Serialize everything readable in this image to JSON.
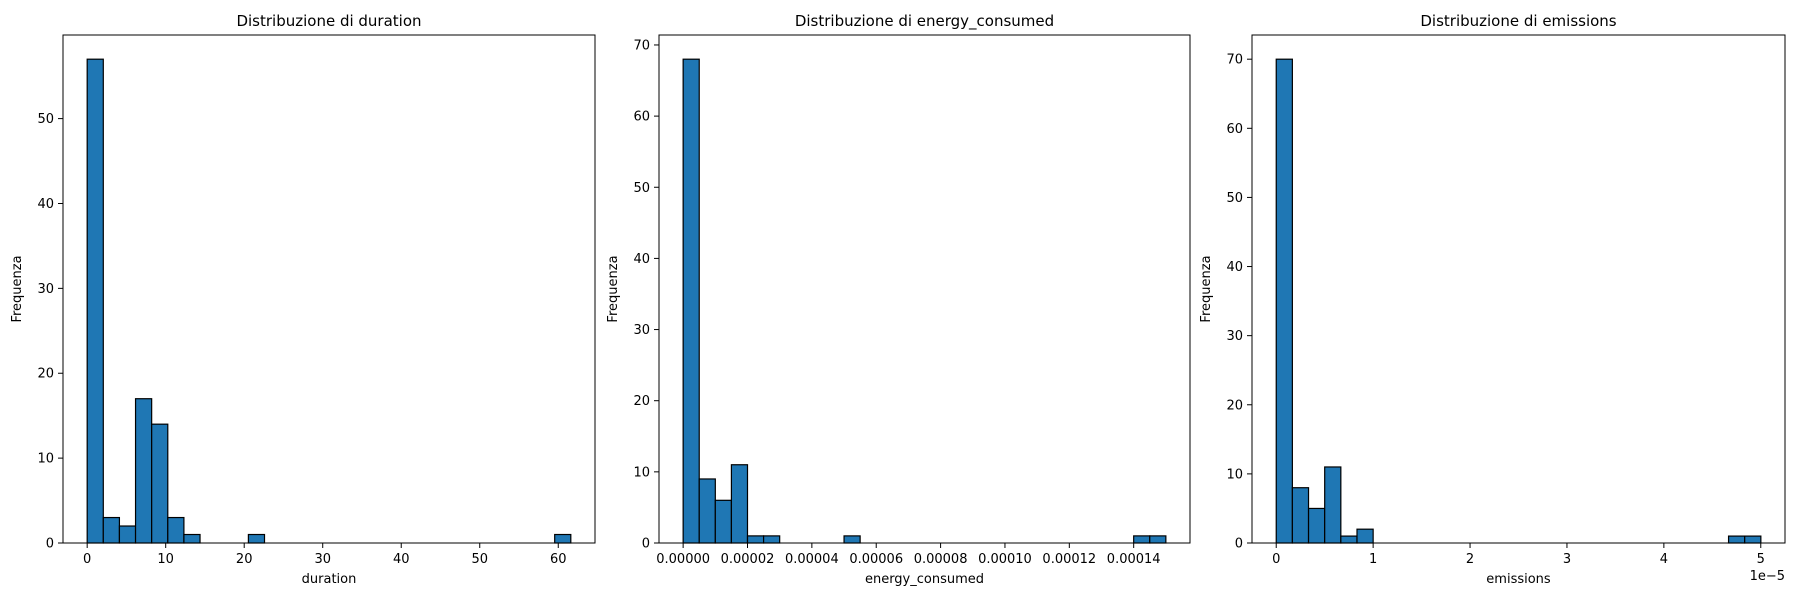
{
  "chart_data": [
    {
      "type": "bar",
      "title": "Distribuzione di duration",
      "xlabel": "duration",
      "ylabel": "Frequenza",
      "xlim": [
        -3.08,
        64.68
      ],
      "ylim": [
        0,
        59.85
      ],
      "xticks": [
        0,
        10,
        20,
        30,
        40,
        50,
        60
      ],
      "xtick_labels": [
        "0",
        "10",
        "20",
        "30",
        "40",
        "50",
        "60"
      ],
      "yticks": [
        0,
        10,
        20,
        30,
        40,
        50
      ],
      "ytick_labels": [
        "0",
        "10",
        "20",
        "30",
        "40",
        "50"
      ],
      "offset_label": "",
      "bin_start": 0.0,
      "bin_width": 2.0533,
      "values": [
        57,
        3,
        2,
        17,
        14,
        3,
        1,
        0,
        0,
        0,
        1,
        0,
        0,
        0,
        0,
        0,
        0,
        0,
        0,
        0,
        0,
        0,
        0,
        0,
        0,
        0,
        0,
        0,
        0,
        1
      ],
      "grid": false
    },
    {
      "type": "bar",
      "title": "Distribuzione di energy_consumed",
      "xlabel": "energy_consumed",
      "ylabel": "Frequenza",
      "xlim": [
        -7.5e-06,
        0.0001575
      ],
      "ylim": [
        0,
        71.4
      ],
      "xticks": [
        0,
        2e-05,
        4e-05,
        6e-05,
        8e-05,
        0.0001,
        0.00012,
        0.00014
      ],
      "xtick_labels": [
        "0.00000",
        "0.00002",
        "0.00004",
        "0.00006",
        "0.00008",
        "0.00010",
        "0.00012",
        "0.00014"
      ],
      "yticks": [
        0,
        10,
        20,
        30,
        40,
        50,
        60,
        70
      ],
      "ytick_labels": [
        "0",
        "10",
        "20",
        "30",
        "40",
        "50",
        "60",
        "70"
      ],
      "offset_label": "",
      "bin_start": 0.0,
      "bin_width": 5e-06,
      "values": [
        68,
        9,
        6,
        11,
        1,
        1,
        0,
        0,
        0,
        0,
        1,
        0,
        0,
        0,
        0,
        0,
        0,
        0,
        0,
        0,
        0,
        0,
        0,
        0,
        0,
        0,
        0,
        0,
        1,
        1
      ],
      "grid": false
    },
    {
      "type": "bar",
      "title": "Distribuzione di emissions",
      "xlabel": "emissions",
      "ylabel": "Frequenza",
      "xlim": [
        -0.25,
        5.25
      ],
      "ylim": [
        0,
        73.5
      ],
      "xticks": [
        0,
        1,
        2,
        3,
        4,
        5
      ],
      "xtick_labels": [
        "0",
        "1",
        "2",
        "3",
        "4",
        "5"
      ],
      "yticks": [
        0,
        10,
        20,
        30,
        40,
        50,
        60,
        70
      ],
      "ytick_labels": [
        "0",
        "10",
        "20",
        "30",
        "40",
        "50",
        "60",
        "70"
      ],
      "offset_label": "1e−5",
      "bin_start": 0.0,
      "bin_width": 0.1667,
      "values": [
        70,
        8,
        5,
        11,
        1,
        2,
        0,
        0,
        0,
        0,
        0,
        0,
        0,
        0,
        0,
        0,
        0,
        0,
        0,
        0,
        0,
        0,
        0,
        0,
        0,
        0,
        0,
        0,
        1,
        1
      ],
      "grid": false
    }
  ],
  "colors": {
    "bar_fill": "#1f77b4",
    "bar_edge": "#000000",
    "axis": "#000000",
    "background": "#ffffff"
  }
}
